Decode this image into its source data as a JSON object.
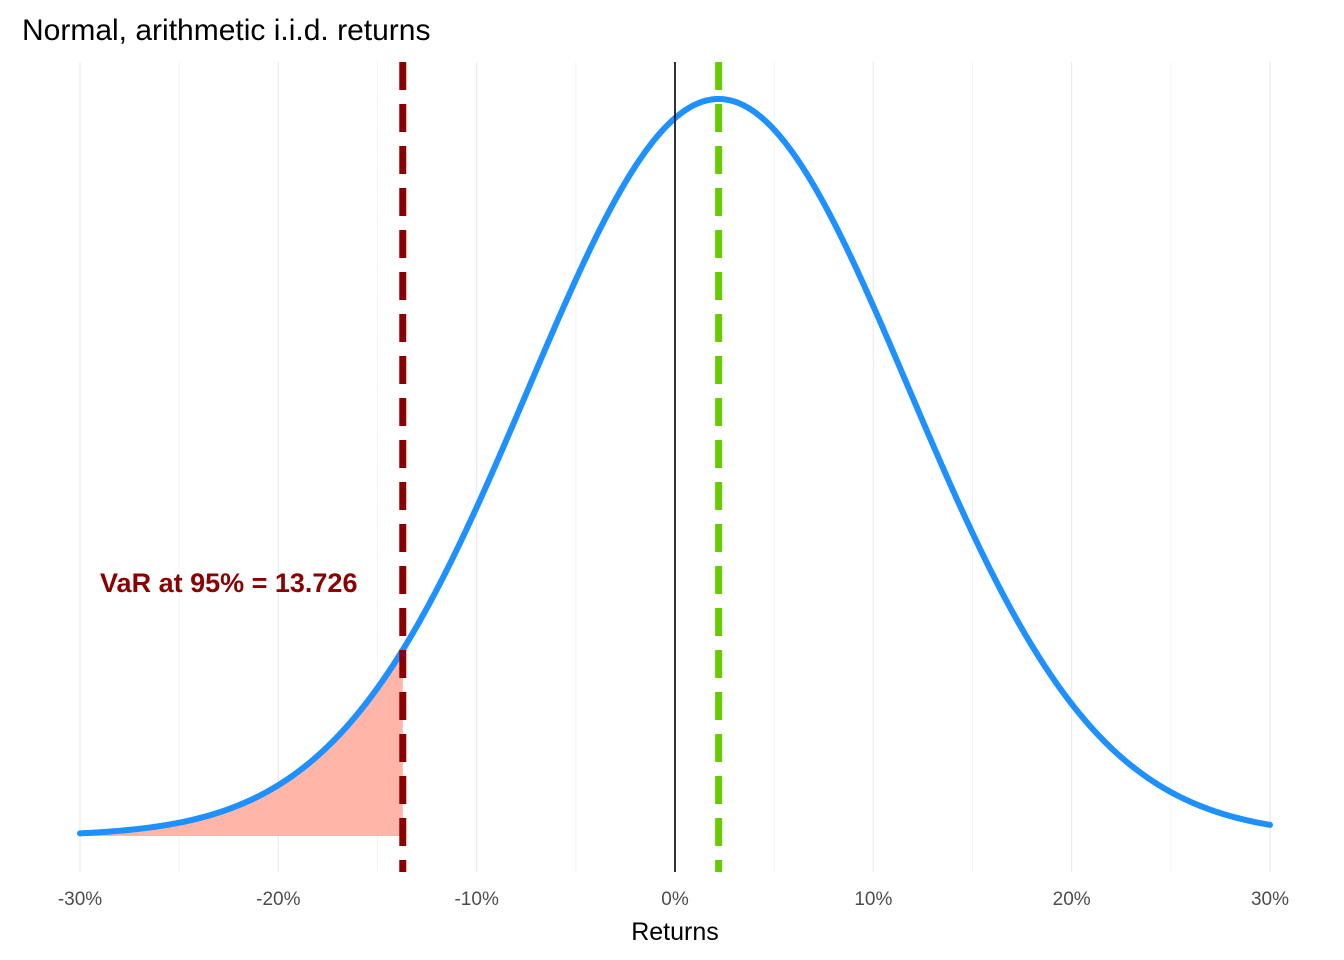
{
  "chart_data": {
    "type": "line",
    "title": "Normal, arithmetic i.i.d. returns",
    "subtitle": "",
    "xlabel": "Returns",
    "ylabel": "",
    "xlim": [
      -30,
      30
    ],
    "x_ticks": [
      -30,
      -20,
      -10,
      0,
      10,
      20,
      30
    ],
    "x_tick_labels": [
      "-30%",
      "-20%",
      "-10%",
      "0%",
      "10%",
      "20%",
      "30%"
    ],
    "y_axis_visible": false,
    "grid": "vertical",
    "legend": "none",
    "series": [
      {
        "kind": "normal-density",
        "mean": 2.2,
        "sd": 9.6,
        "color": "#1e90ff"
      }
    ],
    "shaded_region": {
      "from": -30,
      "to": -13.726,
      "color": "#ffb6a8"
    },
    "vlines": [
      {
        "x": 0,
        "style": "solid",
        "color": "#000000"
      },
      {
        "x": -13.726,
        "style": "dashed",
        "color": "#8b0000"
      },
      {
        "x": 2.2,
        "style": "dashed",
        "color": "#66cc00"
      }
    ],
    "annotations": [
      {
        "text": "VaR at 95% = 13.726",
        "x": -22.5,
        "color": "#8b0000"
      }
    ]
  }
}
